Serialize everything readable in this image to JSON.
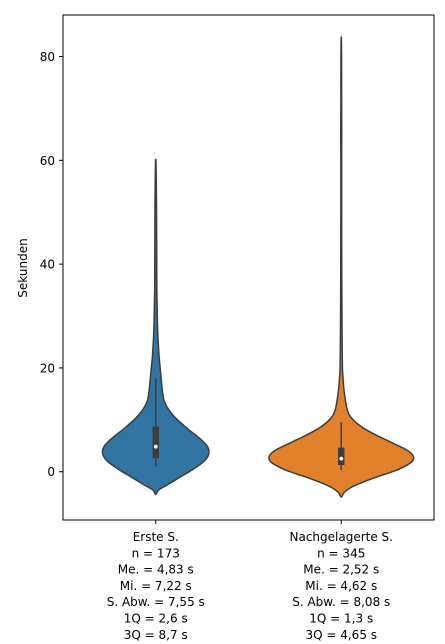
{
  "chart_data": {
    "type": "violin",
    "title": "",
    "xlabel": "",
    "ylabel": "Sekunden",
    "ylim": [
      -9.3,
      88
    ],
    "yticks": [
      0,
      20,
      40,
      60,
      80
    ],
    "grid": false,
    "categories": [
      {
        "name": "Erste S.",
        "color": "#3274a1",
        "stats_lines": [
          "n = 173",
          "Me. = 4,83 s",
          "Mi. = 7,22 s",
          "S. Abw. = 7,55 s",
          "1Q = 2,6 s",
          "3Q = 8,7 s"
        ],
        "min": -4.3,
        "max": 60,
        "whisker_low": 1.0,
        "whisker_high": 18,
        "q1": 2.6,
        "median": 4.83,
        "q3": 8.7,
        "density_profile": [
          [
            -4.3,
            0.5
          ],
          [
            -3.5,
            3
          ],
          [
            -2.5,
            12
          ],
          [
            -1,
            25
          ],
          [
            0,
            34
          ],
          [
            1,
            42
          ],
          [
            2,
            49
          ],
          [
            3,
            53
          ],
          [
            4,
            54
          ],
          [
            5,
            52
          ],
          [
            6,
            47
          ],
          [
            7,
            41
          ],
          [
            8,
            34
          ],
          [
            9,
            28
          ],
          [
            10,
            22
          ],
          [
            11,
            17
          ],
          [
            12,
            13
          ],
          [
            13,
            10
          ],
          [
            14,
            8
          ],
          [
            16,
            6.5
          ],
          [
            18,
            5.5
          ],
          [
            20,
            4.5
          ],
          [
            22,
            3.5
          ],
          [
            24,
            2.8
          ],
          [
            26,
            2.2
          ],
          [
            28,
            1.8
          ],
          [
            30,
            1.6
          ],
          [
            32,
            1.4
          ],
          [
            35,
            1.1
          ],
          [
            40,
            1.0
          ],
          [
            45,
            0.9
          ],
          [
            50,
            0.8
          ],
          [
            55,
            0.6
          ],
          [
            58,
            0.4
          ],
          [
            60,
            0.2
          ]
        ]
      },
      {
        "name": "Nachgelagerte S.",
        "color": "#e1812c",
        "stats_lines": [
          "n = 345",
          "Me. = 2,52 s",
          "Mi. = 4,62 s",
          "S. Abw. = 8,08 s",
          "1Q = 1,3 s",
          "3Q = 4,65 s"
        ],
        "min": -4.8,
        "max": 83.5,
        "whisker_low": 0.3,
        "whisker_high": 9.5,
        "q1": 1.3,
        "median": 2.52,
        "q3": 4.65,
        "density_profile": [
          [
            -4.8,
            0.5
          ],
          [
            -4,
            3
          ],
          [
            -3,
            10
          ],
          [
            -2,
            22
          ],
          [
            -1,
            36
          ],
          [
            0,
            52
          ],
          [
            1,
            64
          ],
          [
            2,
            72
          ],
          [
            3,
            73
          ],
          [
            4,
            68
          ],
          [
            5,
            58
          ],
          [
            6,
            47
          ],
          [
            7,
            36
          ],
          [
            8,
            26
          ],
          [
            9,
            18
          ],
          [
            10,
            12
          ],
          [
            11,
            8
          ],
          [
            12,
            6
          ],
          [
            14,
            4
          ],
          [
            16,
            2.6
          ],
          [
            18,
            1.8
          ],
          [
            20,
            1.2
          ],
          [
            25,
            0.9
          ],
          [
            30,
            0.7
          ],
          [
            40,
            0.5
          ],
          [
            50,
            0.4
          ],
          [
            60,
            0.4
          ],
          [
            65,
            0.5
          ],
          [
            70,
            0.4
          ],
          [
            80,
            0.3
          ],
          [
            83.5,
            0.1
          ]
        ]
      }
    ]
  }
}
